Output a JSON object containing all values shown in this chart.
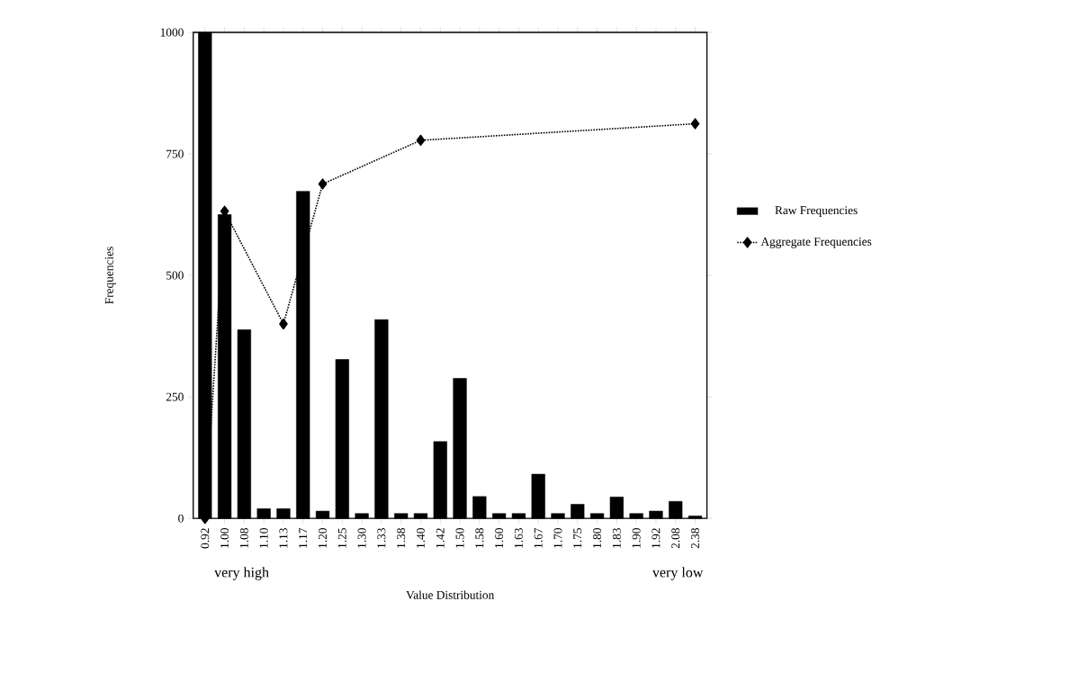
{
  "chart_data": {
    "type": "bar",
    "xlabel": "Value Distribution",
    "ylabel": "Frequencies",
    "categories": [
      "0.92",
      "1.00",
      "1.08",
      "1.10",
      "1.13",
      "1.17",
      "1.20",
      "1.25",
      "1.30",
      "1.33",
      "1.38",
      "1.40",
      "1.42",
      "1.50",
      "1.58",
      "1.60",
      "1.63",
      "1.67",
      "1.70",
      "1.75",
      "1.80",
      "1.83",
      "1.90",
      "1.92",
      "2.08",
      "2.38"
    ],
    "series": [
      {
        "name": "Raw Frequencies",
        "color": "#000000",
        "values": [
          1000,
          625,
          388,
          20,
          20,
          673,
          15,
          327,
          10,
          409,
          10,
          10,
          158,
          288,
          45,
          10,
          10,
          91,
          10,
          29,
          10,
          44,
          10,
          15,
          35,
          5
        ]
      },
      {
        "name": "Aggregate Frequencies",
        "type": "line",
        "color": "#000000",
        "marker": "diamond",
        "line_style": "dotted",
        "values": [
          0,
          632,
          null,
          null,
          400,
          null,
          688,
          null,
          null,
          null,
          null,
          778,
          null,
          null,
          null,
          null,
          null,
          null,
          null,
          null,
          null,
          null,
          null,
          null,
          null,
          812
        ]
      }
    ],
    "ylim": [
      0,
      1000
    ],
    "yticks": [
      0,
      250,
      500,
      750,
      1000
    ],
    "grid": false,
    "legend": "right",
    "annotations": [
      "very high",
      "very low"
    ]
  }
}
